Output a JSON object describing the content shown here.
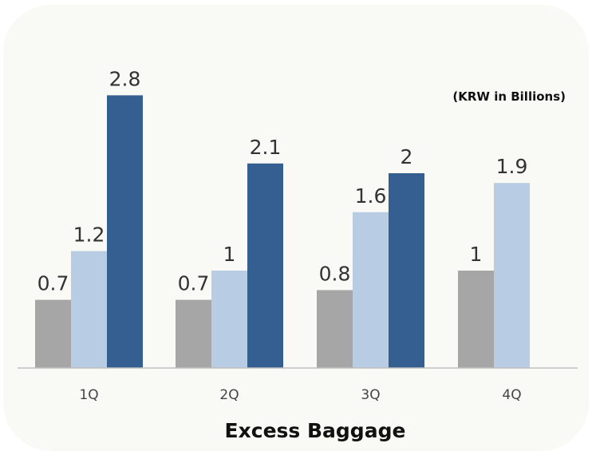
{
  "chart_data": {
    "type": "bar",
    "title": "Excess Baggage",
    "unit_note": "(KRW in Billions)",
    "categories": [
      "1Q",
      "2Q",
      "3Q",
      "4Q"
    ],
    "series": [
      {
        "values": [
          0.7,
          0.7,
          0.8,
          1
        ],
        "color": "#a6a6a6"
      },
      {
        "values": [
          1.2,
          1,
          1.6,
          1.9
        ],
        "color": "#b8cce4"
      },
      {
        "values": [
          2.8,
          2.1,
          2,
          null
        ],
        "color": "#365f91"
      }
    ],
    "ylim": [
      0,
      3.0
    ],
    "grid": false,
    "legend": "none"
  },
  "colors": {
    "background": "#f9f9f5",
    "axis": "#bfbfbf"
  }
}
